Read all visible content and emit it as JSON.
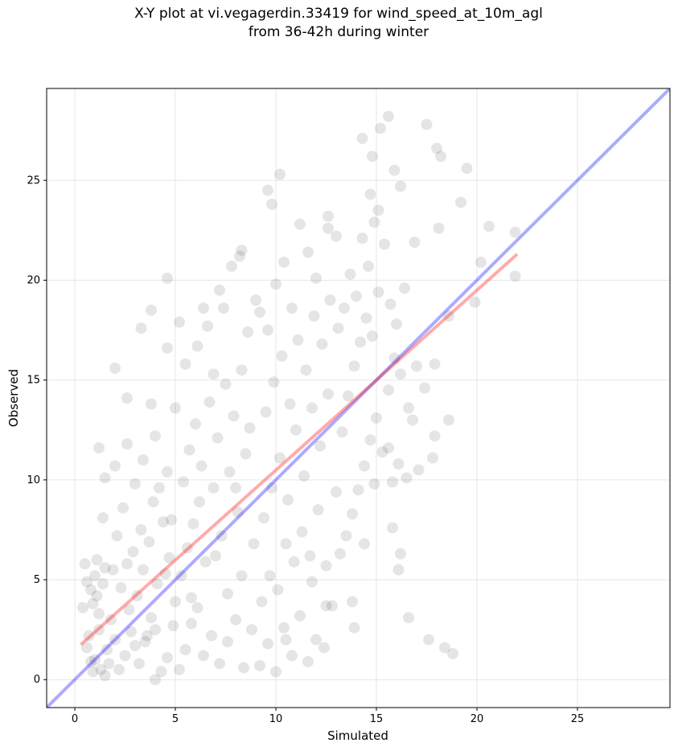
{
  "chart_data": {
    "type": "scatter",
    "title": [
      "X-Y plot at vi.vegagerdin.33419 for wind_speed_at_10m_agl",
      "from 36-42h during winter"
    ],
    "xlabel": "Simulated",
    "ylabel": "Observed",
    "xlim": [
      -1.4,
      29.6
    ],
    "ylim": [
      -1.4,
      29.6
    ],
    "xticks": [
      0,
      5,
      10,
      15,
      20,
      25
    ],
    "yticks": [
      0,
      5,
      10,
      15,
      20,
      25
    ],
    "grid": true,
    "points": {
      "color": "#000000",
      "x": [
        15.6,
        17.5,
        15.2,
        14.3,
        18,
        18.2,
        14.8,
        19.5,
        15.9,
        10.2,
        16.2,
        9.6,
        19.2,
        14.7,
        15.1,
        9.8,
        20.6,
        12.6,
        18.1,
        21.9,
        16.9,
        20.2,
        21.9,
        19.9,
        18.6,
        4.6,
        3.8,
        3.3,
        4.6,
        2.0,
        2.6,
        1.2,
        18.6,
        17.9,
        17.8,
        17.1,
        15.8,
        15.8,
        16.2,
        16.1,
        16.6,
        17.6,
        18.4,
        18.8,
        12.5,
        13.9,
        0.5,
        0.6,
        0.8,
        0.9,
        1.0,
        1.1,
        1.2,
        0.7,
        1.0,
        1.3,
        1.5,
        0.9,
        1.6,
        1.8,
        1.4,
        1.9,
        1.7,
        2.0,
        0.4,
        1.2,
        0.6,
        1.5,
        0.8,
        1.1,
        2.2,
        2.5,
        2.8,
        3.0,
        3.2,
        3.5,
        3.8,
        4.0,
        4.3,
        4.6,
        4.9,
        2.3,
        2.6,
        2.9,
        3.1,
        3.4,
        3.7,
        4.1,
        4.4,
        4.7,
        5.0,
        2.1,
        2.4,
        3.0,
        3.3,
        3.9,
        4.2,
        4.5,
        4.8,
        2.7,
        3.6,
        4.0,
        2.0,
        2.6,
        3.4,
        4.0,
        4.6,
        1.4,
        1.5,
        3.8,
        5.2,
        5.5,
        5.8,
        6.1,
        6.4,
        6.8,
        7.2,
        7.6,
        8.0,
        8.4,
        8.8,
        5.3,
        5.6,
        5.9,
        6.2,
        6.5,
        6.9,
        7.3,
        7.7,
        8.1,
        8.5,
        8.9,
        5.4,
        5.7,
        6.0,
        6.3,
        6.7,
        7.1,
        7.5,
        7.9,
        8.3,
        8.7,
        5.5,
        6.1,
        6.6,
        7.4,
        7.8,
        8.2,
        8.6,
        9.0,
        6.9,
        7.6,
        8.3,
        5.8,
        7.0,
        8.0,
        5.0,
        5.2,
        6.4,
        7.2,
        8.3,
        9.2,
        9.6,
        10.0,
        10.4,
        10.8,
        11.2,
        11.6,
        12.0,
        12.4,
        9.3,
        9.7,
        10.1,
        10.5,
        10.9,
        11.3,
        11.7,
        12.1,
        12.5,
        9.4,
        9.8,
        10.2,
        10.6,
        11.0,
        11.4,
        11.8,
        12.2,
        12.6,
        9.5,
        9.9,
        10.3,
        10.7,
        11.1,
        11.5,
        11.9,
        12.3,
        12.7,
        9.6,
        10.0,
        10.4,
        10.8,
        11.2,
        11.6,
        12.0,
        12.6,
        13.0,
        9.2,
        10.5,
        12.8,
        11.8,
        13.0,
        13.2,
        13.5,
        13.8,
        14.1,
        14.4,
        14.7,
        15.0,
        15.3,
        15.6,
        15.9,
        16.2,
        16.6,
        13.3,
        13.6,
        13.9,
        14.2,
        14.5,
        14.8,
        15.1,
        15.4,
        15.7,
        16.0,
        16.4,
        13.4,
        13.7,
        14.0,
        14.3,
        14.6,
        14.9,
        13.1,
        14.4,
        13.8,
        14.9,
        15.6,
        16.1,
        16.8,
        17.0,
        17.4,
        17.9,
        16.5
      ],
      "y": [
        28.2,
        27.8,
        27.6,
        27.1,
        26.6,
        26.2,
        26.2,
        25.6,
        25.5,
        25.3,
        24.7,
        24.5,
        23.9,
        24.3,
        23.5,
        23.8,
        22.7,
        23.2,
        22.6,
        22.4,
        21.9,
        20.9,
        20.2,
        18.9,
        18.2,
        20.1,
        18.5,
        17.6,
        16.6,
        15.6,
        14.1,
        11.6,
        13.0,
        12.2,
        11.1,
        10.5,
        9.9,
        7.6,
        6.3,
        5.5,
        3.1,
        2.0,
        1.6,
        1.3,
        3.7,
        2.6,
        5.8,
        4.9,
        4.5,
        3.8,
        5.2,
        4.2,
        2.5,
        2.2,
        1.0,
        0.5,
        0.2,
        0.4,
        1.5,
        3.0,
        4.8,
        5.5,
        0.8,
        2.0,
        3.6,
        3.3,
        1.6,
        5.6,
        0.9,
        6.0,
        0.5,
        1.2,
        2.4,
        1.7,
        0.8,
        1.9,
        3.1,
        2.5,
        0.4,
        1.1,
        2.7,
        4.6,
        5.8,
        6.4,
        4.2,
        5.5,
        6.9,
        4.8,
        7.9,
        6.1,
        3.9,
        7.2,
        8.6,
        9.8,
        7.5,
        8.9,
        9.6,
        5.3,
        8.0,
        3.5,
        2.2,
        0.0,
        10.7,
        11.8,
        11.0,
        12.2,
        10.4,
        8.1,
        10.1,
        13.8,
        0.5,
        1.5,
        2.8,
        3.6,
        1.2,
        2.2,
        0.8,
        1.9,
        3.0,
        0.6,
        2.5,
        5.2,
        6.6,
        7.8,
        8.9,
        5.9,
        9.6,
        7.2,
        10.4,
        8.4,
        11.3,
        6.8,
        9.9,
        11.5,
        12.8,
        10.7,
        13.9,
        12.1,
        14.8,
        13.2,
        15.5,
        12.6,
        15.8,
        16.7,
        17.7,
        18.6,
        20.7,
        21.2,
        17.4,
        19.0,
        15.3,
        4.3,
        5.2,
        4.1,
        6.2,
        9.6,
        13.6,
        17.9,
        18.6,
        19.5,
        21.5,
        0.7,
        1.8,
        0.4,
        2.6,
        1.2,
        3.2,
        0.9,
        2.0,
        1.6,
        3.9,
        5.2,
        4.5,
        6.8,
        5.9,
        7.4,
        6.2,
        8.5,
        5.7,
        8.1,
        9.6,
        11.1,
        9.0,
        12.5,
        10.2,
        13.6,
        11.7,
        14.3,
        13.4,
        14.9,
        16.2,
        13.8,
        17.0,
        15.5,
        18.2,
        16.8,
        19.0,
        17.5,
        19.8,
        20.9,
        18.6,
        22.8,
        21.4,
        20.1,
        22.6,
        22.2,
        18.4,
        2.0,
        3.7,
        4.9,
        9.4,
        6.3,
        7.2,
        8.3,
        9.5,
        10.7,
        12.0,
        13.1,
        11.4,
        14.5,
        16.1,
        15.3,
        13.6,
        12.4,
        14.2,
        15.7,
        16.9,
        18.1,
        17.2,
        19.4,
        21.8,
        18.8,
        17.8,
        19.6,
        18.6,
        20.3,
        19.2,
        22.1,
        20.7,
        22.9,
        17.6,
        6.8,
        3.9,
        9.8,
        11.6,
        10.8,
        13.0,
        15.7,
        14.6,
        15.8,
        10.1
      ]
    },
    "lines": [
      {
        "color": "#0000ff",
        "x": [
          -1.4,
          29.6
        ],
        "y": [
          -1.4,
          29.6
        ]
      },
      {
        "color": "#ff0000",
        "x": [
          0.3,
          22.0
        ],
        "y": [
          1.75,
          21.3
        ]
      }
    ]
  }
}
